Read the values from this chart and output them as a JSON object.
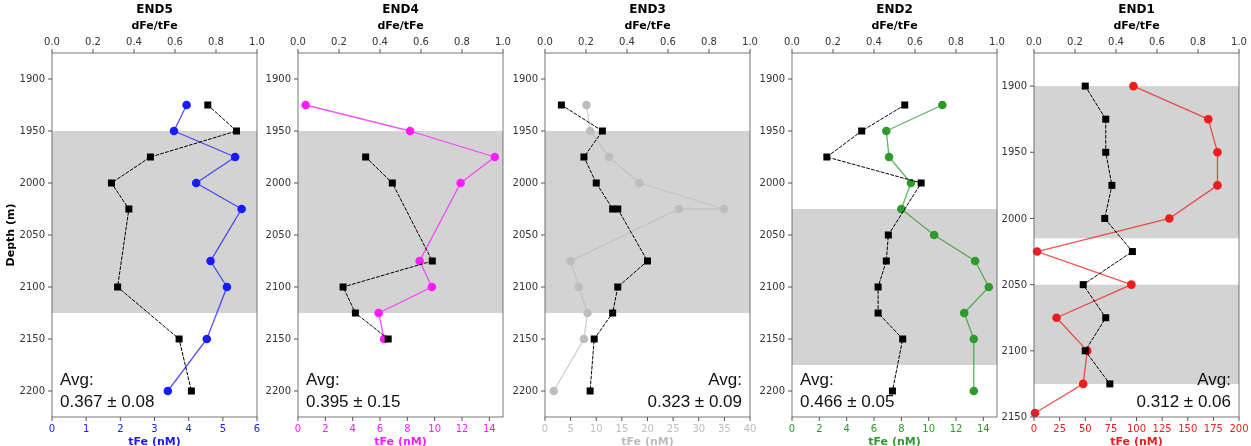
{
  "chart_data": [
    {
      "type": "line",
      "title": "END5",
      "xlabel": "tFe (nM)",
      "x2label": "dFe/tFe",
      "ylabel": "Depth (m)",
      "xlim": [
        0,
        6
      ],
      "xticks": [
        0,
        1,
        2,
        3,
        4,
        5,
        6
      ],
      "x2lim": [
        0,
        1
      ],
      "x2ticks": [
        {
          "value": 0,
          "label": "0.0"
        },
        {
          "value": 0.2,
          "label": "0.2"
        },
        {
          "value": 0.4,
          "label": "0.4"
        },
        {
          "value": 0.6,
          "label": "0.6"
        },
        {
          "value": 0.8,
          "label": "0.8"
        },
        {
          "value": 1,
          "label": "1.0"
        }
      ],
      "ylim": [
        2225,
        1875
      ],
      "yticks": [
        1900,
        1950,
        2000,
        2050,
        2100,
        2150,
        2200
      ],
      "bands": [
        {
          "axis": "y",
          "from": 1950,
          "to": 2125,
          "color": "#d3d3d3"
        }
      ],
      "annotations": [
        "Avg:\n0.367 ± 0.08"
      ],
      "series": [
        {
          "color": "#1a1aff",
          "marker": "circle",
          "line_style": "solid",
          "x": [
            3.94,
            3.57,
            5.36,
            4.22,
            5.55,
            4.64,
            5.12,
            4.53,
            3.39
          ],
          "values": [
            1925,
            1950,
            1975,
            2000,
            2025,
            2075,
            2100,
            2150,
            2200
          ]
        },
        {
          "color": "#000000",
          "marker": "square",
          "line_style": "dashed",
          "axis": "x2",
          "x": [
            0.76,
            0.9,
            0.48,
            0.29,
            0.375,
            0.32,
            0.62,
            0.68
          ],
          "values": [
            1925,
            1950,
            1975,
            2000,
            2025,
            2100,
            2150,
            2200
          ]
        }
      ]
    },
    {
      "type": "line",
      "title": "END4",
      "xlabel": "tFe (nM)",
      "x2label": "dFe/tFe",
      "xlim": [
        0,
        15
      ],
      "xticks": [
        0,
        2,
        4,
        6,
        8,
        10,
        12,
        14
      ],
      "x2lim": [
        0,
        1
      ],
      "x2ticks": [
        {
          "value": 0,
          "label": "0.0"
        },
        {
          "value": 0.2,
          "label": "0.2"
        },
        {
          "value": 0.4,
          "label": "0.4"
        },
        {
          "value": 0.6,
          "label": "0.6"
        },
        {
          "value": 0.8,
          "label": "0.8"
        },
        {
          "value": 1,
          "label": "1.0"
        }
      ],
      "ylim": [
        2225,
        1875
      ],
      "yticks": [
        1900,
        1950,
        2000,
        2050,
        2100,
        2150,
        2200
      ],
      "bands": [
        {
          "axis": "y",
          "from": 1950,
          "to": 2125,
          "color": "#d3d3d3"
        }
      ],
      "annotations": [
        "Avg:\n0.395 ± 0.15"
      ],
      "series": [
        {
          "color": "#ff1aff",
          "marker": "circle",
          "line_style": "solid",
          "x": [
            0.56,
            8.2,
            14.4,
            11.9,
            8.9,
            9.8,
            5.9,
            6.3
          ],
          "values": [
            1925,
            1950,
            1975,
            2000,
            2075,
            2100,
            2125,
            2150
          ]
        },
        {
          "color": "#000000",
          "marker": "square",
          "line_style": "dashed",
          "axis": "x2",
          "x": [
            0.33,
            0.46,
            0.655,
            0.22,
            0.28,
            0.44
          ],
          "values": [
            1975,
            2000,
            2075,
            2100,
            2125,
            2150
          ]
        }
      ]
    },
    {
      "type": "line",
      "title": "END3",
      "xlabel": "tFe (nM)",
      "x2label": "dFe/tFe",
      "xlim": [
        0,
        40
      ],
      "xticks": [
        0,
        5,
        10,
        15,
        20,
        25,
        30,
        35,
        40
      ],
      "x2lim": [
        0,
        1
      ],
      "x2ticks": [
        {
          "value": 0,
          "label": "0.0"
        },
        {
          "value": 0.2,
          "label": "0.2"
        },
        {
          "value": 0.4,
          "label": "0.4"
        },
        {
          "value": 0.6,
          "label": "0.6"
        },
        {
          "value": 0.8,
          "label": "0.8"
        },
        {
          "value": 1,
          "label": "1.0"
        }
      ],
      "ylim": [
        2225,
        1875
      ],
      "yticks": [
        1900,
        1950,
        2000,
        2050,
        2100,
        2150,
        2200
      ],
      "bands": [
        {
          "axis": "y",
          "from": 1950,
          "to": 2125,
          "color": "#d3d3d3"
        }
      ],
      "annotations": [
        "Avg:\n0.323 ± 0.09"
      ],
      "series": [
        {
          "color": "#bdbdbd",
          "marker": "circle",
          "line_style": "solid",
          "x": [
            8.1,
            8.8,
            12.5,
            18.4,
            34.9,
            26.1,
            5,
            6.6,
            8.3,
            7.6,
            1.7
          ],
          "values": [
            1925,
            1950,
            1975,
            2000,
            2025,
            2025,
            2075,
            2100,
            2125,
            2150,
            2200
          ]
        },
        {
          "color": "#000000",
          "marker": "square",
          "line_style": "dashed",
          "axis": "x2",
          "x": [
            0.08,
            0.28,
            0.19,
            0.25,
            0.33,
            0.355,
            0.5,
            0.355,
            0.33,
            0.24,
            0.22
          ],
          "values": [
            1925,
            1950,
            1975,
            2000,
            2025,
            2025,
            2075,
            2100,
            2125,
            2150,
            2200
          ]
        }
      ]
    },
    {
      "type": "line",
      "title": "END2",
      "xlabel": "tFe (nM)",
      "x2label": "dFe/tFe",
      "xlim": [
        0,
        15
      ],
      "xticks": [
        0,
        2,
        4,
        6,
        8,
        10,
        12,
        14
      ],
      "x2lim": [
        0,
        1
      ],
      "x2ticks": [
        {
          "value": 0,
          "label": "0.0"
        },
        {
          "value": 0.2,
          "label": "0.2"
        },
        {
          "value": 0.4,
          "label": "0.4"
        },
        {
          "value": 0.6,
          "label": "0.6"
        },
        {
          "value": 0.8,
          "label": "0.8"
        },
        {
          "value": 1,
          "label": "1.0"
        }
      ],
      "ylim": [
        2225,
        1875
      ],
      "yticks": [
        1900,
        1950,
        2000,
        2050,
        2100,
        2150,
        2200
      ],
      "bands": [
        {
          "axis": "y",
          "from": 2025,
          "to": 2175,
          "color": "#d3d3d3"
        }
      ],
      "annotations": [
        "Avg:\n0.466 ± 0.05"
      ],
      "series": [
        {
          "color": "#2e9a2e",
          "marker": "circle",
          "line_style": "solid",
          "x": [
            11,
            6.9,
            7.1,
            8.7,
            8,
            10.4,
            13.4,
            14.4,
            12.6,
            13.3,
            13.3
          ],
          "values": [
            1925,
            1950,
            1975,
            2000,
            2025,
            2050,
            2075,
            2100,
            2125,
            2150,
            2200
          ]
        },
        {
          "color": "#000000",
          "marker": "square",
          "line_style": "dashed",
          "axis": "x2",
          "x": [
            0.55,
            0.34,
            0.17,
            0.63,
            0.47,
            0.46,
            0.42,
            0.42,
            0.54,
            0.49
          ],
          "values": [
            1925,
            1950,
            1975,
            2000,
            2050,
            2075,
            2100,
            2125,
            2150,
            2200
          ]
        }
      ]
    },
    {
      "type": "line",
      "title": "END1",
      "xlabel": "tFe (nM)",
      "x2label": "dFe/tFe",
      "xlim": [
        0,
        200
      ],
      "xticks": [
        0,
        25,
        50,
        75,
        100,
        125,
        150,
        175,
        200
      ],
      "x2lim": [
        0,
        1
      ],
      "x2ticks": [
        {
          "value": 0,
          "label": "0.0"
        },
        {
          "value": 0.2,
          "label": "0.2"
        },
        {
          "value": 0.4,
          "label": "0.4"
        },
        {
          "value": 0.6,
          "label": "0.6"
        },
        {
          "value": 0.8,
          "label": "0.8"
        },
        {
          "value": 1,
          "label": "1.0"
        }
      ],
      "ylim": [
        2150,
        1875
      ],
      "yticks": [
        1900,
        1950,
        2000,
        2050,
        2100,
        2150
      ],
      "bands": [
        {
          "axis": "y",
          "from": 1900,
          "to": 2015,
          "color": "#d3d3d3"
        },
        {
          "axis": "y",
          "from": 2050,
          "to": 2125,
          "color": "#d3d3d3"
        }
      ],
      "annotations": [
        "Avg:\n0.312 ± 0.06"
      ],
      "series": [
        {
          "color": "#ee1c1c",
          "marker": "circle",
          "line_style": "solid",
          "x": [
            97,
            170,
            179,
            179,
            132,
            3,
            95,
            22,
            52,
            48,
            1
          ],
          "values": [
            1900,
            1925,
            1950,
            1975,
            2000,
            2025,
            2050,
            2075,
            2100,
            2125,
            2147
          ]
        },
        {
          "color": "#000000",
          "marker": "square",
          "line_style": "dashed",
          "axis": "x2",
          "x": [
            0.25,
            0.35,
            0.35,
            0.38,
            0.345,
            0.48,
            0.24,
            0.35,
            0.25,
            0.37
          ],
          "values": [
            1900,
            1925,
            1950,
            1975,
            2000,
            2025,
            2050,
            2075,
            2100,
            2125
          ]
        }
      ]
    }
  ]
}
